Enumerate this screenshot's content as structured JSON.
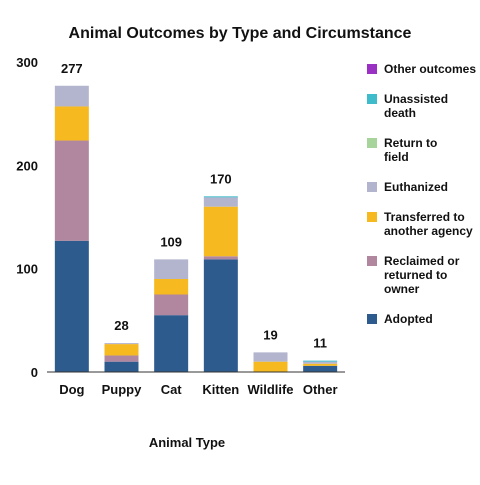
{
  "chart_data": {
    "type": "bar",
    "stacked": true,
    "title": "Animal Outcomes by Type and Circumstance",
    "xlabel": "Animal Type",
    "ylabel": "",
    "categories": [
      "Dog",
      "Puppy",
      "Cat",
      "Kitten",
      "Wildlife",
      "Other"
    ],
    "totals": [
      277,
      28,
      109,
      170,
      19,
      11
    ],
    "ylim": [
      0,
      300
    ],
    "yticks": [
      0,
      100,
      200,
      300
    ],
    "grid": false,
    "legend_position": "right",
    "series": [
      {
        "name": "Adopted",
        "color": "#2e5b8e",
        "values": [
          127,
          10,
          55,
          109,
          0,
          6
        ]
      },
      {
        "name": "Reclaimed or returned to owner",
        "color": "#b0879f",
        "values": [
          97,
          6,
          20,
          3,
          0,
          0
        ]
      },
      {
        "name": "Transferred to another agency",
        "color": "#f6b91f",
        "values": [
          33,
          11,
          15,
          48,
          10,
          2
        ]
      },
      {
        "name": "Euthanized",
        "color": "#b3b5cf",
        "values": [
          20,
          1,
          19,
          9,
          9,
          2
        ]
      },
      {
        "name": "Return to field",
        "color": "#a6d49a",
        "values": [
          0,
          0,
          0,
          0,
          0,
          0
        ]
      },
      {
        "name": "Unassisted death",
        "color": "#3fbccb",
        "values": [
          0,
          0,
          0,
          1,
          0,
          1
        ]
      },
      {
        "name": "Other outcomes",
        "color": "#9b30c4",
        "values": [
          0,
          0,
          0,
          0,
          0,
          0
        ]
      }
    ]
  }
}
